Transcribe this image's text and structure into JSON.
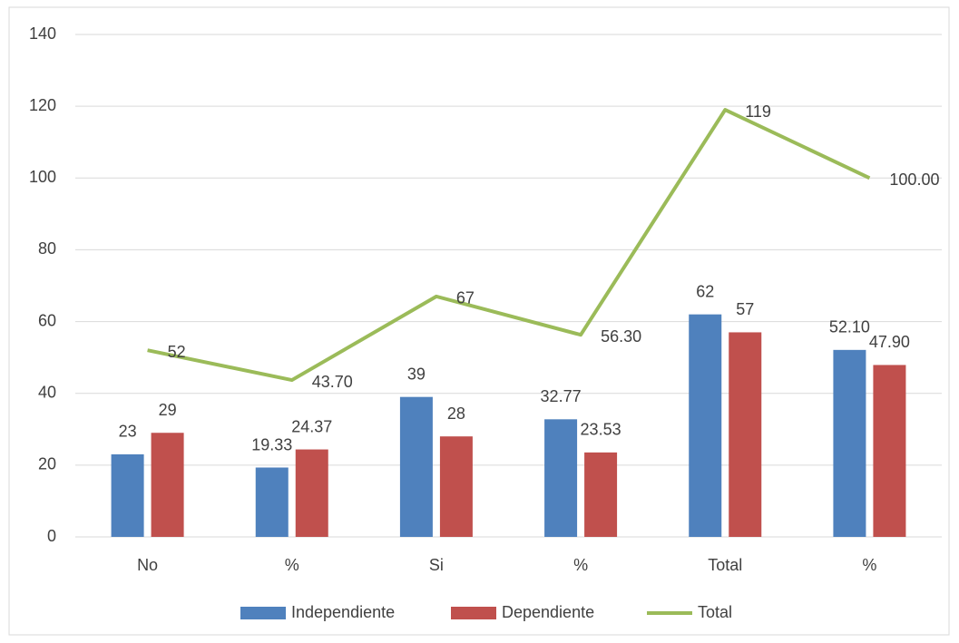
{
  "chart_data": {
    "type": "bar",
    "categories": [
      "No",
      "%",
      "Si",
      "%",
      "Total",
      "%"
    ],
    "series": [
      {
        "name": "Independiente",
        "color": "#4f81bd",
        "values": [
          23,
          19.33,
          39,
          32.77,
          62,
          52.1
        ],
        "value_labels": [
          "23",
          "19.33",
          "39",
          "32.77",
          "62",
          "52.10"
        ]
      },
      {
        "name": "Dependiente",
        "color": "#c0504d",
        "values": [
          29,
          24.37,
          28,
          23.53,
          57,
          47.9
        ],
        "value_labels": [
          "29",
          "24.37",
          "28",
          "23.53",
          "57",
          "47.90"
        ]
      },
      {
        "name": "Total",
        "type": "line",
        "color": "#9bbb59",
        "values": [
          52,
          43.7,
          67,
          56.3,
          119,
          100
        ],
        "value_labels": [
          "52",
          "43.70",
          "67",
          "56.30",
          "119",
          "100.00"
        ]
      }
    ],
    "ylim": [
      0,
      140
    ],
    "yticks": [
      0,
      20,
      40,
      60,
      80,
      100,
      120,
      140
    ],
    "grid": true,
    "legend": "bottom"
  }
}
